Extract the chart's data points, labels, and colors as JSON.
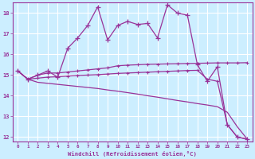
{
  "xlabel": "Windchill (Refroidissement éolien,°C)",
  "bg_color": "#cceeff",
  "grid_color": "#ffffff",
  "line_color": "#993399",
  "xlim": [
    -0.5,
    23.5
  ],
  "ylim": [
    11.8,
    18.5
  ],
  "yticks": [
    12,
    13,
    14,
    15,
    16,
    17,
    18
  ],
  "xticks": [
    0,
    1,
    2,
    3,
    4,
    5,
    6,
    7,
    8,
    9,
    10,
    11,
    12,
    13,
    14,
    15,
    16,
    17,
    18,
    19,
    20,
    21,
    22,
    23
  ],
  "s1_x": [
    0,
    1,
    2,
    3,
    4,
    5,
    6,
    7,
    8,
    9,
    10,
    11,
    12,
    13,
    14,
    15,
    16,
    17,
    18,
    19,
    20,
    21,
    22,
    23
  ],
  "s1_y": [
    15.2,
    14.8,
    15.0,
    15.2,
    14.9,
    16.3,
    16.8,
    17.4,
    18.3,
    16.7,
    17.4,
    17.6,
    17.45,
    17.5,
    16.8,
    18.4,
    18.0,
    17.9,
    15.5,
    14.7,
    15.4,
    12.6,
    12.0,
    11.9
  ],
  "s2_x": [
    0,
    1,
    2,
    3,
    4,
    5,
    6,
    7,
    8,
    9,
    10,
    11,
    12,
    13,
    14,
    15,
    16,
    17,
    18,
    19,
    20,
    21,
    22,
    23
  ],
  "s2_y": [
    15.2,
    14.8,
    15.0,
    15.1,
    15.1,
    15.15,
    15.2,
    15.25,
    15.3,
    15.35,
    15.45,
    15.48,
    15.5,
    15.52,
    15.53,
    15.54,
    15.55,
    15.56,
    15.57,
    15.58,
    15.59,
    15.59,
    15.59,
    15.6
  ],
  "s3_x": [
    0,
    1,
    2,
    3,
    4,
    5,
    6,
    7,
    8,
    9,
    10,
    11,
    12,
    13,
    14,
    15,
    16,
    17,
    18,
    19,
    20,
    21,
    22,
    23
  ],
  "s3_y": [
    15.2,
    14.8,
    14.85,
    14.9,
    14.92,
    14.95,
    14.98,
    15.0,
    15.02,
    15.05,
    15.08,
    15.1,
    15.12,
    15.14,
    15.16,
    15.18,
    15.2,
    15.22,
    15.23,
    14.8,
    14.7,
    12.6,
    12.0,
    11.9
  ],
  "s4_x": [
    0,
    1,
    2,
    3,
    4,
    5,
    6,
    7,
    8,
    9,
    10,
    11,
    12,
    13,
    14,
    15,
    16,
    17,
    18,
    19,
    20,
    21,
    22,
    23
  ],
  "s4_y": [
    15.2,
    14.8,
    14.65,
    14.6,
    14.55,
    14.5,
    14.45,
    14.4,
    14.35,
    14.28,
    14.22,
    14.15,
    14.08,
    14.0,
    13.93,
    13.85,
    13.77,
    13.7,
    13.62,
    13.55,
    13.47,
    13.2,
    12.5,
    11.9
  ]
}
